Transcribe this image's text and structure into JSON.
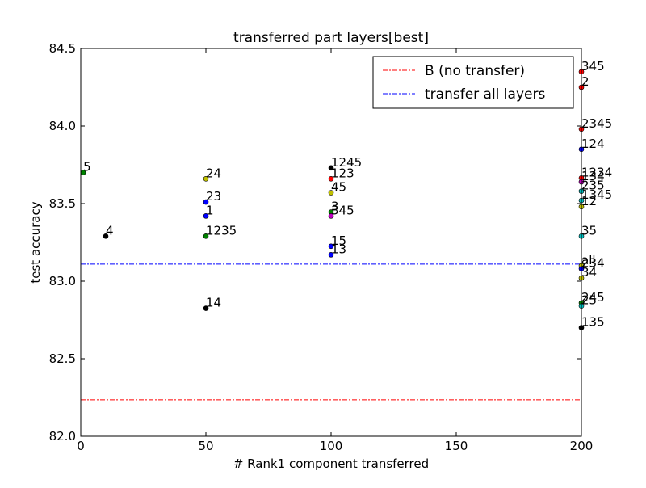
{
  "chart_data": {
    "type": "scatter",
    "title": "transferred part layers[best]",
    "xlabel": "# Rank1 component transferred",
    "ylabel": "test accuracy",
    "xlim": [
      0,
      200
    ],
    "ylim": [
      82.0,
      84.5
    ],
    "xticks": [
      0,
      50,
      100,
      150,
      200
    ],
    "yticks": [
      82.0,
      82.5,
      83.0,
      83.5,
      84.0,
      84.5
    ],
    "xtick_labels": [
      "0",
      "50",
      "100",
      "150",
      "200"
    ],
    "ytick_labels": [
      "82.0",
      "82.5",
      "83.0",
      "83.5",
      "84.0",
      "84.5"
    ],
    "grid": false,
    "legend_position": "top-right",
    "reference_lines": [
      {
        "label": "B (no transfer)",
        "y": 82.235,
        "color": "#ff0000",
        "style": "dash-dot"
      },
      {
        "label": "transfer all layers",
        "y": 83.11,
        "color": "#0000ff",
        "style": "dash-dot"
      }
    ],
    "points": [
      {
        "label": "5",
        "x": 1,
        "y": 83.7,
        "color": "#008000"
      },
      {
        "label": "4",
        "x": 10,
        "y": 83.29,
        "color": "#000000"
      },
      {
        "label": "24",
        "x": 50,
        "y": 83.66,
        "color": "#bfbf00"
      },
      {
        "label": "23",
        "x": 50,
        "y": 83.51,
        "color": "#0000ff"
      },
      {
        "label": "1",
        "x": 50,
        "y": 83.42,
        "color": "#0000ff"
      },
      {
        "label": "1235",
        "x": 50,
        "y": 83.29,
        "color": "#008000"
      },
      {
        "label": "14",
        "x": 50,
        "y": 82.825,
        "color": "#000000"
      },
      {
        "label": "1245",
        "x": 100,
        "y": 83.73,
        "color": "#000000"
      },
      {
        "label": "123",
        "x": 100,
        "y": 83.66,
        "color": "#ff0000"
      },
      {
        "label": "45",
        "x": 100,
        "y": 83.57,
        "color": "#bfbf00"
      },
      {
        "label": "3",
        "x": 100,
        "y": 83.445,
        "color": "#008000"
      },
      {
        "label": "345",
        "x": 100,
        "y": 83.42,
        "color": "#bf00bf"
      },
      {
        "label": "15",
        "x": 100,
        "y": 83.225,
        "color": "#0000ff"
      },
      {
        "label": "13",
        "x": 100,
        "y": 83.17,
        "color": "#0000ff"
      },
      {
        "label": "345",
        "x": 200,
        "y": 84.35,
        "color": "#ff0000"
      },
      {
        "label": "2",
        "x": 200,
        "y": 84.25,
        "color": "#ff0000"
      },
      {
        "label": "2345",
        "x": 200,
        "y": 83.98,
        "color": "#ff0000"
      },
      {
        "label": "124",
        "x": 200,
        "y": 83.85,
        "color": "#0000ff"
      },
      {
        "label": "1234",
        "x": 200,
        "y": 83.665,
        "color": "#ff0000"
      },
      {
        "label": "134",
        "x": 200,
        "y": 83.64,
        "color": "#bf00bf"
      },
      {
        "label": "235",
        "x": 200,
        "y": 83.58,
        "color": "#00bfbf"
      },
      {
        "label": "1345",
        "x": 200,
        "y": 83.52,
        "color": "#00bfbf"
      },
      {
        "label": "12",
        "x": 200,
        "y": 83.48,
        "color": "#bfbf00"
      },
      {
        "label": "35",
        "x": 200,
        "y": 83.29,
        "color": "#00bfbf"
      },
      {
        "label": "all",
        "x": 200,
        "y": 83.1,
        "color": "#bfbf00"
      },
      {
        "label": "234",
        "x": 200,
        "y": 83.08,
        "color": "#0000ff"
      },
      {
        "label": "34",
        "x": 200,
        "y": 83.02,
        "color": "#bfbf00"
      },
      {
        "label": "245",
        "x": 200,
        "y": 82.86,
        "color": "#008000"
      },
      {
        "label": "25",
        "x": 200,
        "y": 82.84,
        "color": "#00bfbf"
      },
      {
        "label": "135",
        "x": 200,
        "y": 82.7,
        "color": "#000000"
      }
    ]
  }
}
